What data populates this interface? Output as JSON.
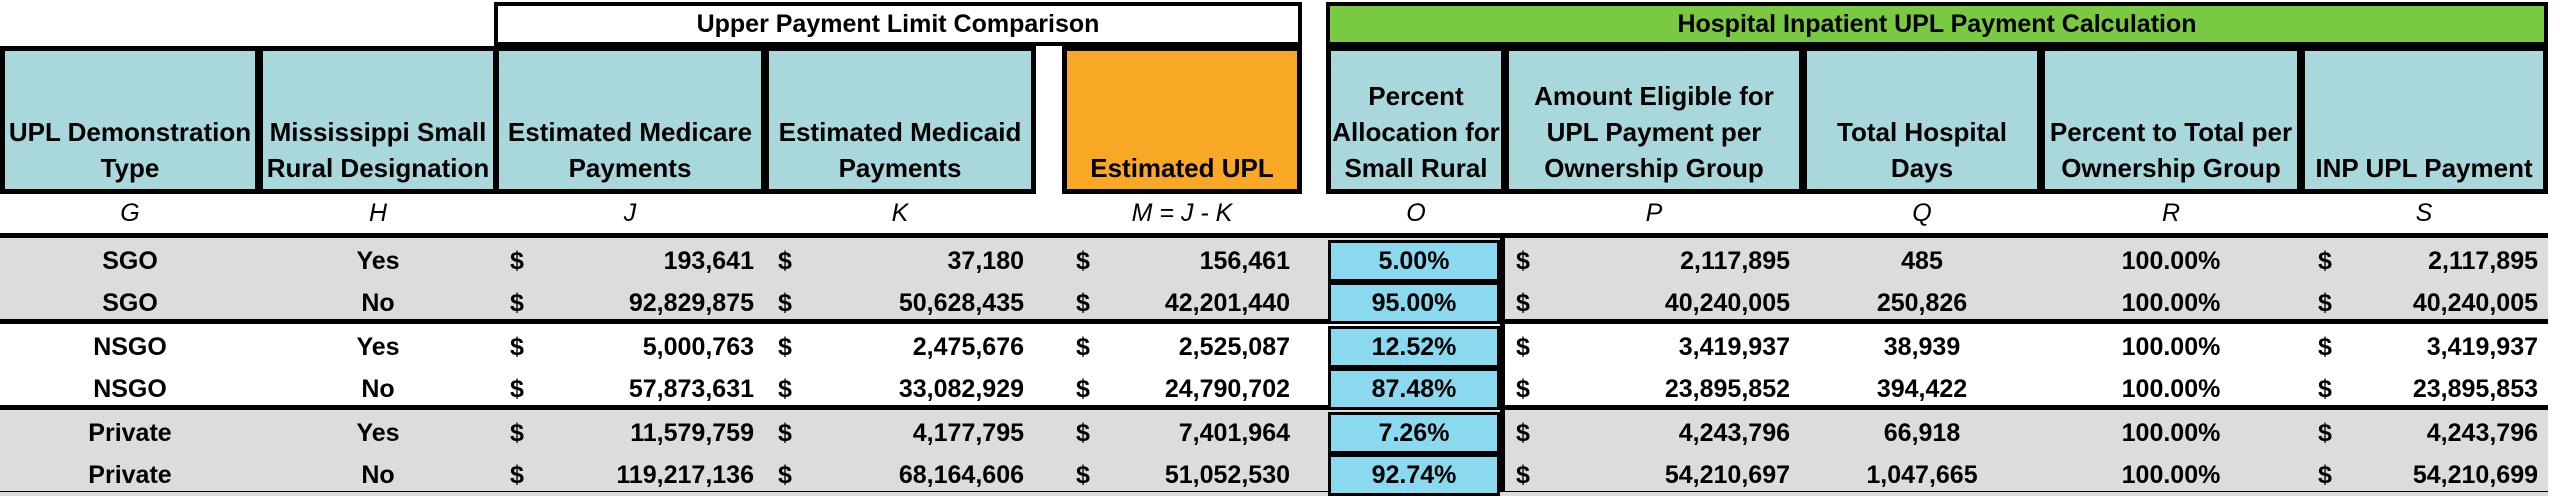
{
  "banners": {
    "upl_comparison": "Upper Payment Limit Comparison",
    "hospital_inpatient": "Hospital Inpatient UPL Payment Calculation"
  },
  "headers": [
    {
      "key": "G",
      "label": "UPL Demonstration Type",
      "letter": "G"
    },
    {
      "key": "H",
      "label": "Mississippi Small Rural Designation",
      "letter": "H"
    },
    {
      "key": "J",
      "label": "Estimated Medicare Payments",
      "letter": "J"
    },
    {
      "key": "K",
      "label": "Estimated Medicaid Payments",
      "letter": "K"
    },
    {
      "key": "M",
      "label": "Estimated UPL",
      "letter": "M = J - K"
    },
    {
      "key": "O",
      "label": "Percent Allocation for Small Rural",
      "letter": "O"
    },
    {
      "key": "P",
      "label": "Amount Eligible for UPL Payment per Ownership Group",
      "letter": "P"
    },
    {
      "key": "Q",
      "label": "Total Hospital Days",
      "letter": "Q"
    },
    {
      "key": "R",
      "label": "Percent to Total per Ownership Group",
      "letter": "R"
    },
    {
      "key": "S",
      "label": "INP UPL Payment",
      "letter": "S"
    }
  ],
  "currency_symbol": "$",
  "rows": [
    {
      "type": "SGO",
      "rural": "Yes",
      "medicare": "193,641",
      "medicaid": "37,180",
      "upl": "156,461",
      "pct_alloc": "5.00%",
      "eligible": "2,117,895",
      "days": "485",
      "pct_total": "100.00%",
      "payment": "2,117,895"
    },
    {
      "type": "SGO",
      "rural": "No",
      "medicare": "92,829,875",
      "medicaid": "50,628,435",
      "upl": "42,201,440",
      "pct_alloc": "95.00%",
      "eligible": "40,240,005",
      "days": "250,826",
      "pct_total": "100.00%",
      "payment": "40,240,005"
    },
    {
      "type": "NSGO",
      "rural": "Yes",
      "medicare": "5,000,763",
      "medicaid": "2,475,676",
      "upl": "2,525,087",
      "pct_alloc": "12.52%",
      "eligible": "3,419,937",
      "days": "38,939",
      "pct_total": "100.00%",
      "payment": "3,419,937"
    },
    {
      "type": "NSGO",
      "rural": "No",
      "medicare": "57,873,631",
      "medicaid": "33,082,929",
      "upl": "24,790,702",
      "pct_alloc": "87.48%",
      "eligible": "23,895,852",
      "days": "394,422",
      "pct_total": "100.00%",
      "payment": "23,895,853"
    },
    {
      "type": "Private",
      "rural": "Yes",
      "medicare": "11,579,759",
      "medicaid": "4,177,795",
      "upl": "7,401,964",
      "pct_alloc": "7.26%",
      "eligible": "4,243,796",
      "days": "66,918",
      "pct_total": "100.00%",
      "payment": "4,243,796"
    },
    {
      "type": "Private",
      "rural": "No",
      "medicare": "119,217,136",
      "medicaid": "68,164,606",
      "upl": "51,052,530",
      "pct_alloc": "92.74%",
      "eligible": "54,210,697",
      "days": "1,047,665",
      "pct_total": "100.00%",
      "payment": "54,210,699"
    }
  ],
  "colors": {
    "header_blue": "#a9d8dc",
    "upl_orange": "#f9a825",
    "banner_green": "#7ac943",
    "percent_cyan": "#8ad9ef",
    "band_gray": "#dcdcdc"
  }
}
